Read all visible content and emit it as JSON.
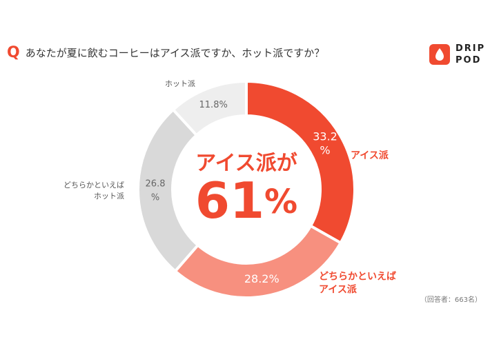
{
  "header": {
    "q_mark": "Q",
    "title": "あなたが夏に飲むコーヒーはアイス派ですか、ホット派ですか？"
  },
  "logo": {
    "line1": "DRIP",
    "line2": "POD",
    "brand_color": "#f04a30"
  },
  "center": {
    "line1": "アイス派が",
    "line2_number": "61",
    "line2_unit": "%"
  },
  "note": "（回答者：663名）",
  "chart_data": {
    "type": "pie",
    "donut": true,
    "categories": [
      "アイス派",
      "どちらかといえばアイス派",
      "どちらかといえばホット派",
      "ホット派"
    ],
    "values": [
      33.2,
      28.2,
      26.8,
      11.8
    ],
    "unit": "%",
    "value_labels": [
      "33.2\n%",
      "28.2%",
      "26.8\n%",
      "11.8%"
    ],
    "outer_labels": [
      "アイス派",
      "どちらかといえば\nアイス派",
      "どちらかといえば\nホット派",
      "ホット派"
    ],
    "colors": [
      "#f04a30",
      "#f7907f",
      "#d9d9d9",
      "#eeeeee"
    ],
    "value_label_colors": [
      "#ffffff",
      "#ffffff",
      "#666666",
      "#666666"
    ],
    "outer_label_colors": [
      "#f04a30",
      "#f04a30",
      "#555555",
      "#555555"
    ],
    "start": "12 o'clock, clockwise"
  }
}
